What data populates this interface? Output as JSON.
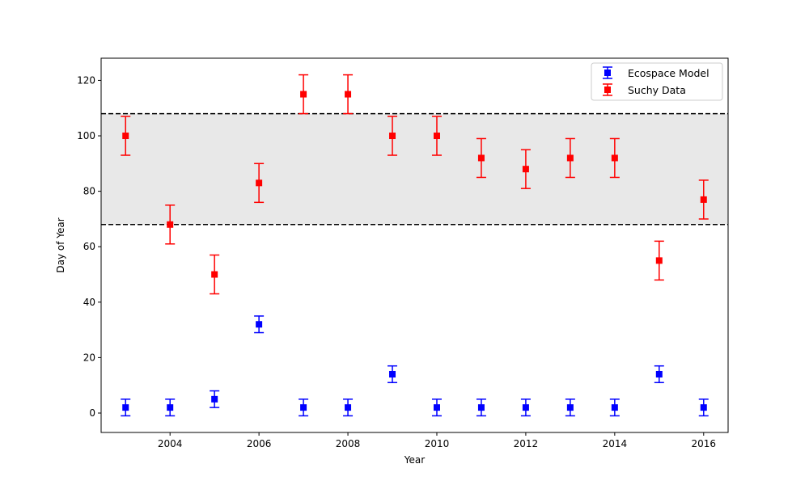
{
  "chart_data": {
    "type": "scatter",
    "title": "",
    "xlabel": "Year",
    "ylabel": "Day of Year",
    "xlim": [
      2002.45,
      2016.55
    ],
    "ylim": [
      -7,
      128
    ],
    "xticks": [
      2004,
      2006,
      2008,
      2010,
      2012,
      2014,
      2016
    ],
    "yticks": [
      0,
      20,
      40,
      60,
      80,
      100,
      120
    ],
    "grid": false,
    "legend_position": "top-right",
    "band": {
      "from": 68,
      "to": 108,
      "color": "#e8e8e8",
      "line_color": "#000000",
      "line_style": "dashed"
    },
    "series": [
      {
        "name": "Ecospace Model",
        "color": "#0000ff",
        "marker": "square",
        "error": 3,
        "points": [
          {
            "x": 2003,
            "y": 2
          },
          {
            "x": 2004,
            "y": 2
          },
          {
            "x": 2005,
            "y": 5
          },
          {
            "x": 2006,
            "y": 32
          },
          {
            "x": 2007,
            "y": 2
          },
          {
            "x": 2008,
            "y": 2
          },
          {
            "x": 2009,
            "y": 14
          },
          {
            "x": 2010,
            "y": 2
          },
          {
            "x": 2011,
            "y": 2
          },
          {
            "x": 2012,
            "y": 2
          },
          {
            "x": 2013,
            "y": 2
          },
          {
            "x": 2014,
            "y": 2
          },
          {
            "x": 2015,
            "y": 14
          },
          {
            "x": 2016,
            "y": 2
          }
        ]
      },
      {
        "name": "Suchy Data",
        "color": "#ff0000",
        "marker": "square",
        "error": 7,
        "points": [
          {
            "x": 2003,
            "y": 100
          },
          {
            "x": 2004,
            "y": 68
          },
          {
            "x": 2005,
            "y": 50
          },
          {
            "x": 2006,
            "y": 83
          },
          {
            "x": 2007,
            "y": 115
          },
          {
            "x": 2008,
            "y": 115
          },
          {
            "x": 2009,
            "y": 100
          },
          {
            "x": 2010,
            "y": 100
          },
          {
            "x": 2011,
            "y": 92
          },
          {
            "x": 2012,
            "y": 88
          },
          {
            "x": 2013,
            "y": 92
          },
          {
            "x": 2014,
            "y": 92
          },
          {
            "x": 2015,
            "y": 55
          },
          {
            "x": 2016,
            "y": 77
          }
        ]
      }
    ]
  }
}
